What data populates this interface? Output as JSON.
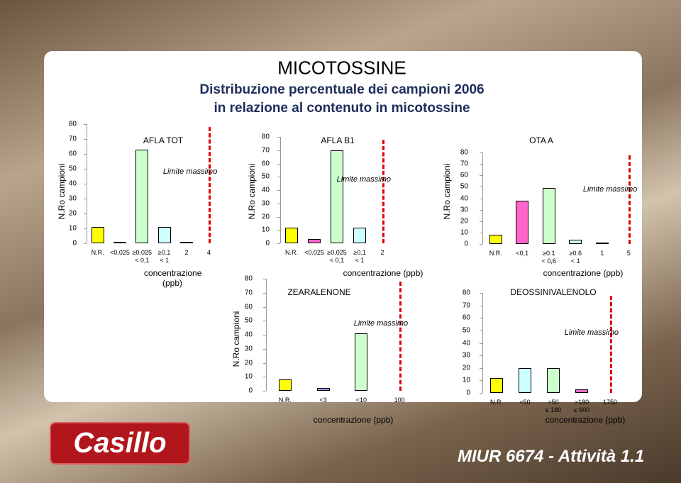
{
  "header": {
    "title": "MICOTOSSINE",
    "subtitle": [
      "Distribuzione percentuale dei campioni 2006",
      "in relazione al contenuto in micotossine"
    ]
  },
  "logo": "Casillo",
  "footer": "MIUR 6674 - Attività 1.1",
  "chart_data": [
    {
      "type": "bar",
      "title": "AFLA TOT",
      "y_label": "N.Ro campioni",
      "x_label": "concentrazione (ppb)",
      "categories": [
        "N.R.",
        "<0,025",
        "≥0.025\n< 0,1",
        "≥0.1\n< 1",
        "2",
        "4"
      ],
      "values": [
        11,
        1,
        63,
        11,
        1,
        null
      ],
      "colors": [
        "#ffff00",
        "#ff66cc",
        "#ccffcc",
        "#ccffff",
        "#9999ff",
        null
      ],
      "ylim": [
        0,
        80
      ],
      "yticks": [
        0,
        10,
        20,
        30,
        40,
        50,
        60,
        70,
        80
      ],
      "limit": {
        "label": "Limite massimo",
        "category": "4"
      }
    },
    {
      "type": "bar",
      "title": "AFLA B1",
      "y_label": "N.Ro campioni",
      "x_label": "concentrazione (ppb)",
      "categories": [
        "N.R.",
        "<0.025",
        "≥0.025\n< 0,1",
        "≥0.1\n< 1",
        "2"
      ],
      "values": [
        12,
        3,
        70,
        12,
        null
      ],
      "colors": [
        "#ffff00",
        "#ff66cc",
        "#ccffcc",
        "#ccffff",
        null
      ],
      "ylim": [
        0,
        80
      ],
      "yticks": [
        0,
        10,
        20,
        30,
        40,
        50,
        60,
        70,
        80
      ],
      "limit": {
        "label": "Limite massimo",
        "category": "2"
      }
    },
    {
      "type": "bar",
      "title": "OTA A",
      "y_label": "N.Ro campioni",
      "x_label": "concentrazione (ppb)",
      "categories": [
        "N.R.",
        "<0,1",
        "≥0.1\n< 0,6",
        "≥0.6\n< 1",
        "1",
        "5"
      ],
      "values": [
        8,
        38,
        49,
        4,
        1,
        null
      ],
      "colors": [
        "#ffff00",
        "#ff66cc",
        "#ccffcc",
        "#ccffff",
        "#9999ff",
        null
      ],
      "ylim": [
        0,
        80
      ],
      "yticks": [
        0,
        10,
        20,
        30,
        40,
        50,
        60,
        70,
        80
      ],
      "limit": {
        "label": "Limite massimo",
        "category": "5"
      }
    },
    {
      "type": "bar",
      "title": "ZEARALENONE",
      "y_label": "N.Ro campioni",
      "x_label": "concentrazione (ppb)",
      "categories": [
        "N.R.",
        "<3",
        "<10",
        "100"
      ],
      "values": [
        8,
        2,
        41,
        null
      ],
      "colors": [
        "#ffff00",
        "#9999ff",
        "#ccffcc",
        null
      ],
      "ylim": [
        0,
        80
      ],
      "yticks": [
        0,
        10,
        20,
        30,
        40,
        50,
        60,
        70,
        80
      ],
      "limit": {
        "label": "Limite massimo",
        "category": "100"
      }
    },
    {
      "type": "bar",
      "title": "DEOSSINIVALENOLO",
      "x_label": "concentrazione (ppb)",
      "categories": [
        "N.R.",
        "<50",
        ">50\n≤ 180",
        ">180\n≤ 600",
        "1750"
      ],
      "values": [
        12,
        20,
        20,
        3,
        null
      ],
      "colors": [
        "#ffff00",
        "#ccffff",
        "#ccffcc",
        "#ff66cc",
        null
      ],
      "ylim": [
        0,
        80
      ],
      "yticks": [
        0,
        10,
        20,
        30,
        40,
        50,
        60,
        70,
        80
      ],
      "limit": {
        "label": "Limite massimo",
        "category": "1750"
      }
    }
  ]
}
